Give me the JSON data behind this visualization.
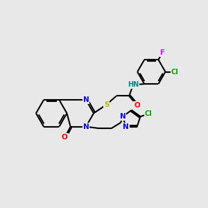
{
  "bg_color": "#e8e8e8",
  "bond_color": "#000000",
  "bond_width": 1.5,
  "atom_colors": {
    "N": "#0000ff",
    "O": "#ff0000",
    "S": "#b8b800",
    "Cl": "#00aa00",
    "F": "#ff00ff",
    "H": "#008888",
    "C": "#000000"
  },
  "font_size": 7.5,
  "figsize": [
    3.0,
    3.0
  ],
  "dpi": 100
}
